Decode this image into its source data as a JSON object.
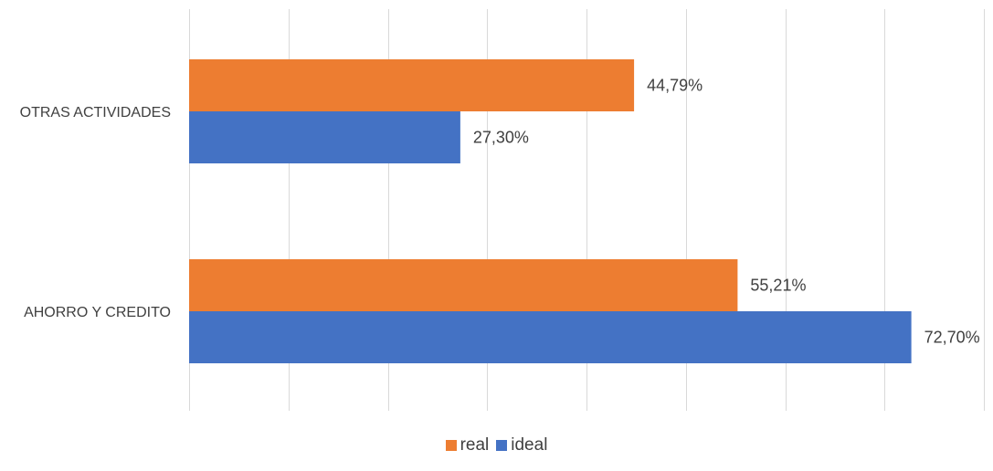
{
  "chart_data": {
    "type": "bar",
    "orientation": "horizontal",
    "categories": [
      "OTRAS ACTIVIDADES",
      "AHORRO Y CREDITO"
    ],
    "series": [
      {
        "name": "real",
        "color": "#ED7D31",
        "values": [
          44.79,
          55.21
        ],
        "labels": [
          "44,79%",
          "55,21%"
        ]
      },
      {
        "name": "ideal",
        "color": "#4472C4",
        "values": [
          27.3,
          72.7
        ],
        "labels": [
          "27,30%",
          "72,70%"
        ]
      }
    ],
    "xlim": [
      0,
      80
    ],
    "grid": true,
    "legend": "bottom-center"
  }
}
